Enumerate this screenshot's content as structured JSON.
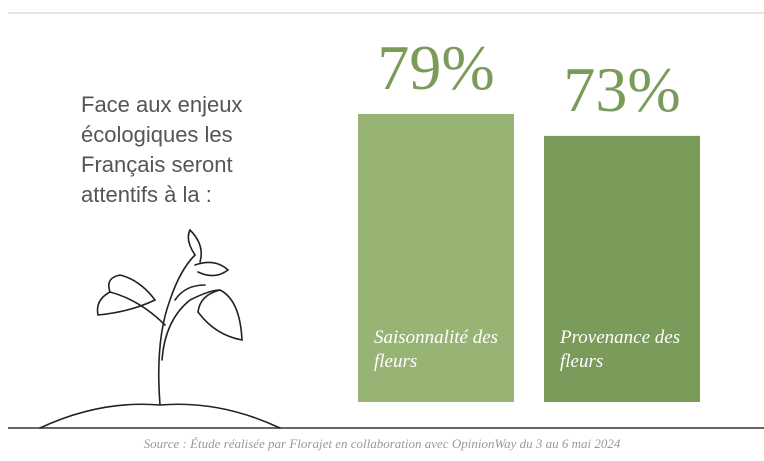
{
  "chart_data": {
    "type": "bar",
    "title": "Face aux enjeux écologiques les Français seront attentifs à la :",
    "categories": [
      "Saisonnalité des fleurs",
      "Provenance des fleurs"
    ],
    "values": [
      79,
      73
    ],
    "value_labels": [
      "79%",
      "73%"
    ],
    "colors": [
      "#98b474",
      "#7a9b5a"
    ],
    "source": "Source : Étude réalisée par Florajet en collaboration avec OpinionWay du 3 au 6 mai 2024"
  }
}
